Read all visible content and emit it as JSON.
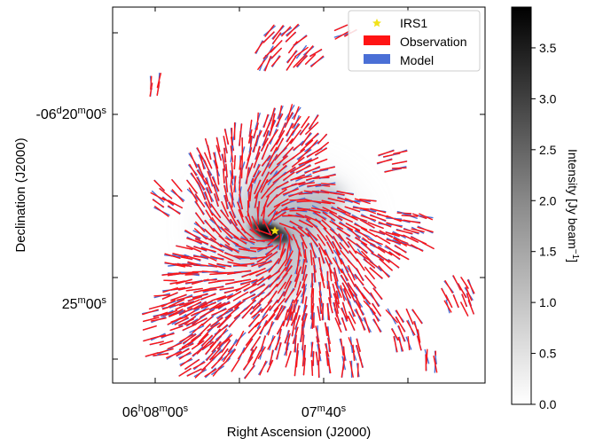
{
  "chart_data": {
    "type": "polarization-vector-map",
    "xlabel": "Right Ascension (J2000)",
    "ylabel": "Declination (J2000)",
    "x_ticks": [
      {
        "value": "06h08m00s",
        "parts": [
          {
            "t": "06",
            "sup": false
          },
          {
            "t": "h",
            "sup": true
          },
          {
            "t": "08",
            "sup": false
          },
          {
            "t": "m",
            "sup": true
          },
          {
            "t": "00",
            "sup": false
          },
          {
            "t": "s",
            "sup": true
          }
        ]
      },
      {
        "value": "07m40s",
        "parts": [
          {
            "t": "07",
            "sup": false
          },
          {
            "t": "m",
            "sup": true
          },
          {
            "t": "40",
            "sup": false
          },
          {
            "t": "s",
            "sup": true
          }
        ]
      }
    ],
    "y_ticks": [
      {
        "value": "-06d20m00s",
        "parts": [
          {
            "t": "-06",
            "sup": false
          },
          {
            "t": "d",
            "sup": true
          },
          {
            "t": "20",
            "sup": false
          },
          {
            "t": "m",
            "sup": true
          },
          {
            "t": "00",
            "sup": false
          },
          {
            "t": "s",
            "sup": true
          }
        ]
      },
      {
        "value": "25m00s",
        "parts": [
          {
            "t": "25",
            "sup": false
          },
          {
            "t": "m",
            "sup": true
          },
          {
            "t": "00",
            "sup": false
          },
          {
            "t": "s",
            "sup": true
          }
        ]
      }
    ],
    "legend": {
      "placement": "top-right",
      "entries": [
        {
          "label": "IRS1",
          "marker": "star",
          "color": "#f2e21a"
        },
        {
          "label": "Observation",
          "marker": "patch",
          "color": "#ff1414"
        },
        {
          "label": "Model",
          "marker": "patch",
          "color": "#4a6fd6"
        }
      ]
    },
    "colorbar": {
      "label_parts": [
        {
          "t": "Intensity [Jy beam",
          "sup": false
        },
        {
          "t": "−1",
          "sup": true
        },
        {
          "t": "]",
          "sup": false
        }
      ],
      "range": [
        0.0,
        3.9
      ],
      "colormap": "Greys",
      "ticks": [
        "0.0",
        "0.5",
        "1.0",
        "1.5",
        "2.0",
        "2.5",
        "3.0",
        "3.5"
      ]
    },
    "source": {
      "name": "IRS1",
      "pos": "center"
    },
    "vectors": {
      "observation_color": "#ff1414",
      "model_color": "#4a6fd6",
      "pattern": "spiral"
    }
  }
}
